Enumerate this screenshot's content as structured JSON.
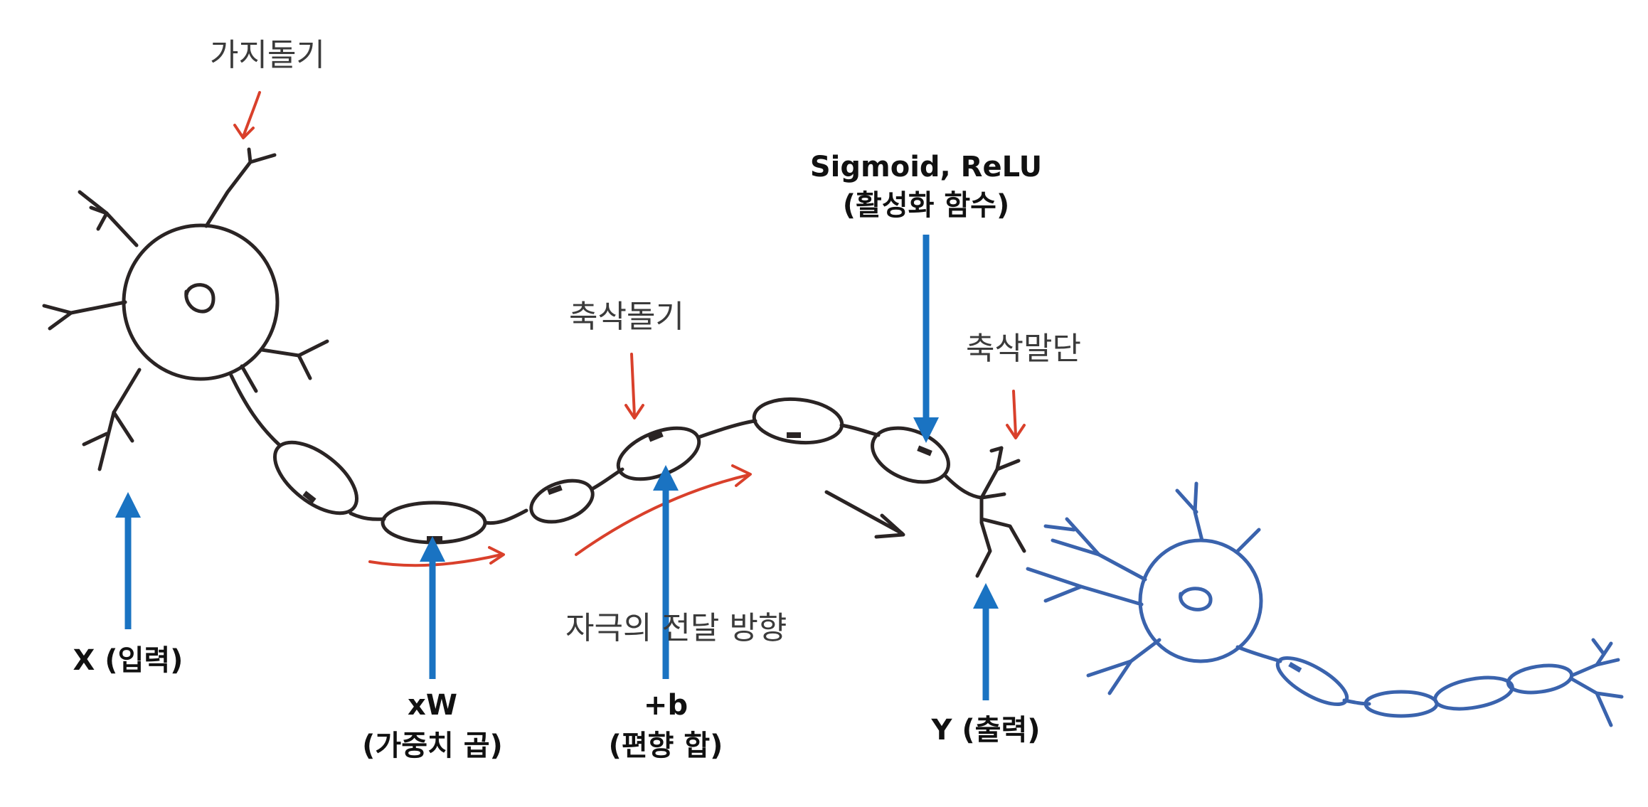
{
  "labels": {
    "dendrite": "가지돌기",
    "axon_hillock": "축삭돌기",
    "axon_terminal": "축삭말단",
    "signal_direction": "자극의 전달 방향"
  },
  "annotations": {
    "input": "X (입력)",
    "weight_line1": "xW",
    "weight_line2": "(가중치 곱)",
    "bias_line1": "+b",
    "bias_line2": "(편향 합)",
    "activation_line1": "Sigmoid, ReLU",
    "activation_line2": "(활성화 함수)",
    "output": "Y (출력)"
  },
  "colors": {
    "neuron_ink": "#2a2424",
    "second_neuron": "#3a63ad",
    "hand_arrows": "#d9402b",
    "annotation_arrows": "#1a73c2"
  }
}
